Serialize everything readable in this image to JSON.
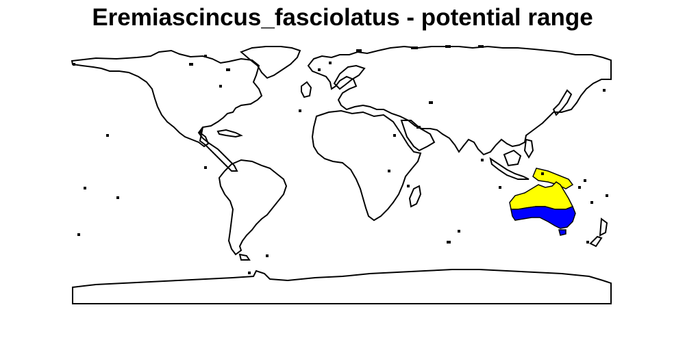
{
  "map": {
    "title": "Eremiascincus_fasciolatus - potential range",
    "colors": {
      "outline": "#000000",
      "background": "#ffffff",
      "range_north": "#ffff00",
      "range_south": "#0000ff"
    }
  }
}
